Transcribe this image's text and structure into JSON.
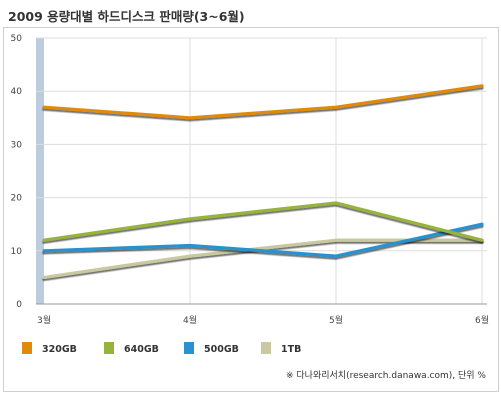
{
  "title": "2009 용량대별 하드디스크 판매량(3~6월)",
  "source": "※ 다나와리서치(research.danawa.com), 단위 %",
  "chart_data": {
    "type": "line",
    "title": "2009 용량대별 하드디스크 판매량(3~6월)",
    "categories": [
      "3월",
      "4월",
      "5월",
      "6월"
    ],
    "yticks": [
      0,
      10,
      20,
      30,
      40,
      50
    ],
    "ylim": [
      0,
      50
    ],
    "grid": true,
    "legend": "bottom",
    "unit": "단위 %",
    "series": [
      {
        "name": "320GB",
        "color": "#e08a0b",
        "values": [
          37,
          35,
          37,
          41
        ]
      },
      {
        "name": "640GB",
        "color": "#96b43c",
        "values": [
          12,
          16,
          19,
          12
        ]
      },
      {
        "name": "500GB",
        "color": "#2893d0",
        "values": [
          10,
          11,
          9,
          15
        ]
      },
      {
        "name": "1TB",
        "color": "#c9c9a0",
        "values": [
          5,
          9,
          12,
          12
        ]
      }
    ]
  }
}
